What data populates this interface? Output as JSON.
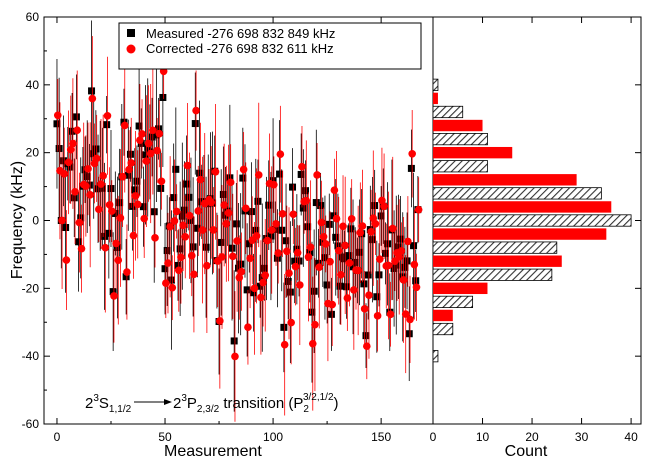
{
  "chart_data": [
    {
      "type": "scatter",
      "title": "",
      "xlabel": "Measurement",
      "ylabel": "Frequency (kHz)",
      "xlim": [
        -6,
        174
      ],
      "ylim": [
        -60,
        60
      ],
      "xticks": [
        "0",
        "50",
        "100",
        "150"
      ],
      "yticks": [
        "-60",
        "-40",
        "-20",
        "0",
        "20",
        "40",
        "60"
      ],
      "grid": false,
      "legend_position": "top",
      "series": [
        {
          "name": "Measured -276 698 832 849 kHz",
          "color": "#000000",
          "marker": "square"
        },
        {
          "name": "Corrected -276 698 832 611 kHz",
          "color": "#ff0000",
          "marker": "circle"
        }
      ],
      "annotation": {
        "lhs_base": "2",
        "lhs_sup": "3",
        "lhs_letter": "S",
        "lhs_sub": "1,1/2",
        "rhs_base": "2",
        "rhs_sup": "3",
        "rhs_letter": "P",
        "rhs_sub": "2,3/2",
        "suffix": " transition (P",
        "p_sub": "2",
        "p_sup": "3/2,1/2",
        "close": ")"
      }
    },
    {
      "type": "bar",
      "orientation": "horizontal",
      "title": "",
      "xlabel": "Count",
      "ylabel": "",
      "xlim": [
        0,
        42
      ],
      "ylim": [
        -60,
        60
      ],
      "xticks": [
        "0",
        "10",
        "20",
        "30",
        "40"
      ],
      "bin_centers": [
        -44,
        -40,
        -36,
        -32,
        -28,
        -24,
        -20,
        -16,
        -12,
        -8,
        -4,
        0,
        4,
        8,
        12,
        16,
        20,
        24,
        28,
        32,
        36,
        40,
        44
      ],
      "series": [
        {
          "name": "Measured",
          "color": "#555555",
          "pattern": "hatched",
          "values": [
            0,
            1,
            0,
            4,
            0,
            8,
            0,
            24,
            0,
            25,
            0,
            40,
            0,
            34,
            0,
            11,
            0,
            11,
            0,
            6,
            0,
            1,
            0
          ]
        },
        {
          "name": "Corrected",
          "color": "#ff0000",
          "pattern": "solid",
          "values": [
            0,
            0,
            0,
            0,
            4,
            0,
            11,
            0,
            26,
            0,
            35,
            0,
            36,
            0,
            29,
            0,
            16,
            0,
            10,
            0,
            1,
            0,
            0
          ]
        }
      ]
    }
  ]
}
